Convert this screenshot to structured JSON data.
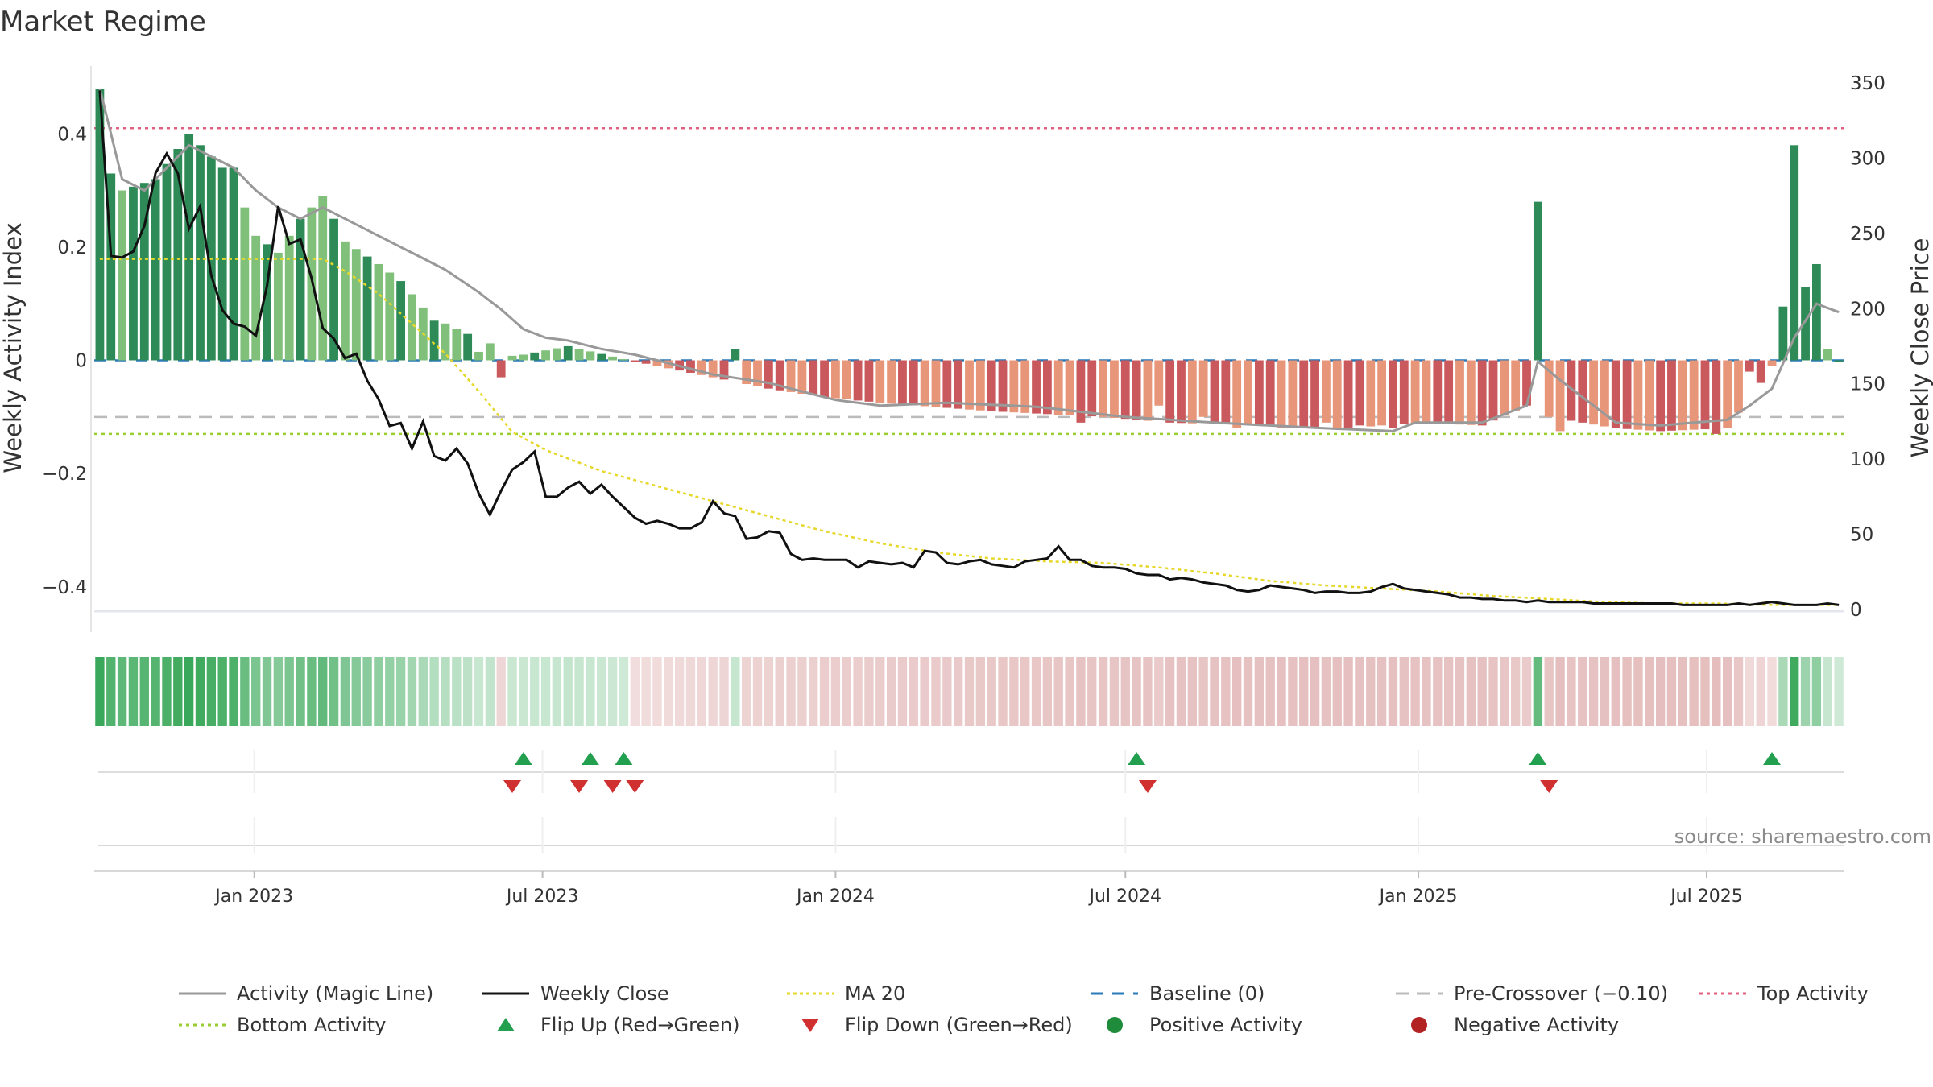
{
  "chart_data": {
    "type": "bar",
    "title": "Market Regime",
    "ylabel_left": "Weekly Activity Index",
    "ylabel_right": "Weekly Close Price",
    "source": "source: sharemaestro.com",
    "left_axis": {
      "ylim": [
        -0.48,
        0.48
      ],
      "ticks": [
        0.4,
        0.2,
        0,
        -0.2,
        -0.4
      ],
      "tick_labels": [
        "0.4",
        "0.2",
        "0",
        "−0.2",
        "−0.4"
      ]
    },
    "right_axis": {
      "ylim": [
        0,
        350
      ],
      "ticks": [
        350,
        300,
        250,
        200,
        150,
        100,
        50,
        0
      ],
      "tick_labels": [
        "350",
        "300",
        "250",
        "200",
        "150",
        "100",
        "50",
        "0"
      ]
    },
    "x_axis": {
      "start": "2022-09-26",
      "weeks": 157,
      "ticks": [
        {
          "label": "Jan 2023",
          "date": "2023-01-01"
        },
        {
          "label": "Jul 2023",
          "date": "2023-07-01"
        },
        {
          "label": "Jan 2024",
          "date": "2024-01-01"
        },
        {
          "label": "Jul 2024",
          "date": "2024-07-01"
        },
        {
          "label": "Jan 2025",
          "date": "2025-01-01"
        },
        {
          "label": "Jul 2025",
          "date": "2025-07-01"
        }
      ]
    },
    "reference_lines": {
      "top_activity": 0.41,
      "bottom_activity": -0.13,
      "pre_crossover": -0.1,
      "baseline": 0
    },
    "colors": {
      "pos_strong": "#2e8b57",
      "pos_light": "#80c07a",
      "neg_strong": "#c9595c",
      "neg_light": "#e8967a",
      "activity_line": "#999999",
      "close_line": "#111111",
      "ma20": "#e6d82a",
      "baseline": "#2a7ab8",
      "pre_crossover": "#bbbbbb",
      "top_activity": "#e06080",
      "bottom_activity": "#9acd32",
      "flip_up": "#22a050",
      "flip_down": "#d03030",
      "positive_dot": "#1e8c3a",
      "negative_dot": "#b22222"
    },
    "activity_keypoints": [
      [
        0,
        0.48
      ],
      [
        1,
        0.33
      ],
      [
        2,
        0.3
      ],
      [
        5,
        0.32
      ],
      [
        8,
        0.4
      ],
      [
        10,
        0.36
      ],
      [
        12,
        0.32
      ],
      [
        14,
        0.22
      ],
      [
        16,
        0.19
      ],
      [
        18,
        0.25
      ],
      [
        20,
        0.29
      ],
      [
        22,
        0.21
      ],
      [
        25,
        0.17
      ],
      [
        27,
        0.14
      ],
      [
        30,
        0.07
      ],
      [
        32,
        0.055
      ],
      [
        35,
        0.03
      ],
      [
        38,
        0.01
      ],
      [
        42,
        0.025
      ],
      [
        47,
        0.002
      ],
      [
        50,
        -0.01
      ],
      [
        55,
        -0.03
      ],
      [
        60,
        -0.05
      ],
      [
        65,
        -0.065
      ],
      [
        70,
        -0.075
      ],
      [
        80,
        -0.09
      ],
      [
        90,
        -0.1
      ],
      [
        96,
        -0.11
      ],
      [
        104,
        -0.115
      ],
      [
        112,
        -0.12
      ],
      [
        118,
        -0.11
      ],
      [
        124,
        -0.115
      ],
      [
        128,
        -0.08
      ],
      [
        129,
        0.28
      ],
      [
        130,
        -0.1
      ],
      [
        136,
        -0.12
      ],
      [
        140,
        -0.125
      ],
      [
        146,
        -0.12
      ],
      [
        150,
        -0.01
      ],
      [
        151,
        0.095
      ],
      [
        152,
        0.38
      ],
      [
        153,
        0.13
      ],
      [
        154,
        0.17
      ],
      [
        155,
        0.02
      ],
      [
        156,
        0.0
      ]
    ],
    "activity_overrides": {
      "12": 0.34,
      "31": 0.065,
      "34": 0.015,
      "36": -0.03,
      "37": 0.008,
      "57": 0.02,
      "88": -0.11,
      "95": -0.08,
      "99": -0.1,
      "102": -0.12,
      "106": -0.12,
      "110": -0.11,
      "113": -0.115,
      "116": -0.12,
      "121": -0.11,
      "131": -0.125,
      "145": -0.13,
      "148": -0.02,
      "149": -0.04
    },
    "activity_line_keypoints": [
      [
        0,
        0.48
      ],
      [
        2,
        0.32
      ],
      [
        4,
        0.3
      ],
      [
        5,
        0.32
      ],
      [
        8,
        0.38
      ],
      [
        10,
        0.36
      ],
      [
        12,
        0.34
      ],
      [
        14,
        0.3
      ],
      [
        16,
        0.27
      ],
      [
        18,
        0.25
      ],
      [
        20,
        0.27
      ],
      [
        22,
        0.25
      ],
      [
        25,
        0.22
      ],
      [
        28,
        0.19
      ],
      [
        31,
        0.16
      ],
      [
        34,
        0.12
      ],
      [
        36,
        0.09
      ],
      [
        38,
        0.055
      ],
      [
        40,
        0.04
      ],
      [
        42,
        0.035
      ],
      [
        45,
        0.02
      ],
      [
        48,
        0.01
      ],
      [
        51,
        -0.005
      ],
      [
        55,
        -0.025
      ],
      [
        60,
        -0.04
      ],
      [
        66,
        -0.07
      ],
      [
        70,
        -0.08
      ],
      [
        76,
        -0.075
      ],
      [
        84,
        -0.082
      ],
      [
        92,
        -0.1
      ],
      [
        100,
        -0.11
      ],
      [
        110,
        -0.12
      ],
      [
        116,
        -0.125
      ],
      [
        118,
        -0.11
      ],
      [
        124,
        -0.11
      ],
      [
        128,
        -0.08
      ],
      [
        129,
        -0.002
      ],
      [
        131,
        -0.035
      ],
      [
        136,
        -0.11
      ],
      [
        140,
        -0.115
      ],
      [
        146,
        -0.105
      ],
      [
        148,
        -0.08
      ],
      [
        150,
        -0.05
      ],
      [
        152,
        0.04
      ],
      [
        154,
        0.1
      ],
      [
        156,
        0.085
      ]
    ],
    "close_keypoints": [
      [
        0,
        345
      ],
      [
        1,
        235
      ],
      [
        2,
        234
      ],
      [
        3,
        238
      ],
      [
        4,
        255
      ],
      [
        5,
        290
      ],
      [
        6,
        303
      ],
      [
        7,
        290
      ],
      [
        8,
        253
      ],
      [
        9,
        268
      ],
      [
        10,
        222
      ],
      [
        11,
        199
      ],
      [
        12,
        190
      ],
      [
        13,
        188
      ],
      [
        14,
        182
      ],
      [
        15,
        215
      ],
      [
        16,
        268
      ],
      [
        17,
        243
      ],
      [
        18,
        246
      ],
      [
        19,
        220
      ],
      [
        20,
        187
      ],
      [
        21,
        180
      ],
      [
        22,
        167
      ],
      [
        23,
        170
      ],
      [
        24,
        152
      ],
      [
        25,
        140
      ],
      [
        26,
        122
      ],
      [
        27,
        124
      ],
      [
        28,
        107
      ],
      [
        29,
        125
      ],
      [
        30,
        102
      ],
      [
        31,
        99
      ],
      [
        32,
        107
      ],
      [
        33,
        97
      ],
      [
        34,
        77
      ],
      [
        35,
        63
      ],
      [
        36,
        79
      ],
      [
        37,
        93
      ],
      [
        38,
        98
      ],
      [
        39,
        105
      ],
      [
        40,
        75
      ],
      [
        41,
        75
      ],
      [
        42,
        81
      ],
      [
        43,
        85
      ],
      [
        44,
        77
      ],
      [
        45,
        83
      ],
      [
        46,
        75
      ],
      [
        47,
        68
      ],
      [
        48,
        61
      ],
      [
        49,
        57
      ],
      [
        50,
        59
      ],
      [
        51,
        57
      ],
      [
        52,
        54
      ],
      [
        53,
        54
      ],
      [
        54,
        58
      ],
      [
        55,
        72
      ],
      [
        56,
        64
      ],
      [
        57,
        62
      ],
      [
        58,
        47
      ],
      [
        59,
        48
      ],
      [
        60,
        52
      ],
      [
        61,
        51
      ],
      [
        62,
        37
      ],
      [
        63,
        33
      ],
      [
        64,
        34
      ],
      [
        65,
        33
      ],
      [
        66,
        33
      ],
      [
        67,
        33
      ],
      [
        68,
        28
      ],
      [
        69,
        32
      ],
      [
        70,
        31
      ],
      [
        71,
        30
      ],
      [
        72,
        31
      ],
      [
        73,
        28
      ],
      [
        74,
        39
      ],
      [
        75,
        38
      ],
      [
        76,
        31
      ],
      [
        77,
        30
      ],
      [
        78,
        32
      ],
      [
        79,
        33
      ],
      [
        80,
        30
      ],
      [
        81,
        29
      ],
      [
        82,
        28
      ],
      [
        83,
        32
      ],
      [
        84,
        33
      ],
      [
        85,
        34
      ],
      [
        86,
        42
      ],
      [
        87,
        33
      ],
      [
        88,
        33
      ],
      [
        89,
        29
      ],
      [
        90,
        28
      ],
      [
        91,
        28
      ],
      [
        92,
        27
      ],
      [
        93,
        24
      ],
      [
        94,
        23
      ],
      [
        95,
        23
      ],
      [
        96,
        20
      ],
      [
        97,
        21
      ],
      [
        98,
        20
      ],
      [
        99,
        18
      ],
      [
        100,
        17
      ],
      [
        101,
        16
      ],
      [
        102,
        13
      ],
      [
        103,
        12
      ],
      [
        104,
        13
      ],
      [
        105,
        16
      ],
      [
        106,
        15
      ],
      [
        107,
        14
      ],
      [
        108,
        13
      ],
      [
        109,
        11
      ],
      [
        110,
        12
      ],
      [
        111,
        12
      ],
      [
        112,
        11
      ],
      [
        113,
        11
      ],
      [
        114,
        12
      ],
      [
        115,
        15
      ],
      [
        116,
        17
      ],
      [
        117,
        14
      ],
      [
        118,
        13
      ],
      [
        119,
        12
      ],
      [
        120,
        11
      ],
      [
        121,
        10
      ],
      [
        122,
        8
      ],
      [
        123,
        8
      ],
      [
        124,
        7
      ],
      [
        125,
        7
      ],
      [
        126,
        6
      ],
      [
        127,
        6
      ],
      [
        128,
        5
      ],
      [
        129,
        6
      ],
      [
        130,
        5
      ],
      [
        131,
        5
      ],
      [
        132,
        5
      ],
      [
        133,
        5
      ],
      [
        134,
        4
      ],
      [
        135,
        4
      ],
      [
        136,
        4
      ],
      [
        137,
        4
      ],
      [
        138,
        4
      ],
      [
        139,
        4
      ],
      [
        140,
        4
      ],
      [
        141,
        4
      ],
      [
        142,
        3
      ],
      [
        143,
        3
      ],
      [
        144,
        3
      ],
      [
        145,
        3
      ],
      [
        146,
        3
      ],
      [
        147,
        4
      ],
      [
        148,
        3
      ],
      [
        149,
        4
      ],
      [
        150,
        5
      ],
      [
        151,
        4
      ],
      [
        152,
        3
      ],
      [
        153,
        3
      ],
      [
        154,
        3
      ],
      [
        155,
        4
      ],
      [
        156,
        3
      ]
    ],
    "ma20_keypoints": [
      [
        0,
        233
      ],
      [
        20,
        233
      ],
      [
        22,
        225
      ],
      [
        25,
        210
      ],
      [
        28,
        190
      ],
      [
        31,
        170
      ],
      [
        34,
        145
      ],
      [
        37,
        118
      ],
      [
        40,
        106
      ],
      [
        45,
        92
      ],
      [
        50,
        82
      ],
      [
        55,
        72
      ],
      [
        60,
        62
      ],
      [
        65,
        52
      ],
      [
        70,
        44
      ],
      [
        75,
        38
      ],
      [
        80,
        34
      ],
      [
        85,
        32
      ],
      [
        90,
        31
      ],
      [
        95,
        28
      ],
      [
        100,
        24
      ],
      [
        105,
        19
      ],
      [
        110,
        16
      ],
      [
        115,
        14
      ],
      [
        120,
        12
      ],
      [
        125,
        9
      ],
      [
        130,
        7
      ],
      [
        135,
        5
      ],
      [
        140,
        4
      ],
      [
        145,
        4
      ],
      [
        150,
        3
      ],
      [
        156,
        3
      ]
    ],
    "flips_up": [
      38,
      44,
      47,
      93,
      129,
      150
    ],
    "flips_down": [
      37,
      43,
      46,
      48,
      94,
      130
    ],
    "legend": [
      "Activity (Magic Line)",
      "Weekly Close",
      "MA 20",
      "Baseline (0)",
      "Pre-Crossover (−0.10)",
      "Top Activity",
      "Bottom Activity",
      "Flip Up (Red→Green)",
      "Flip Down (Green→Red)",
      "Positive Activity",
      "Negative Activity"
    ]
  }
}
